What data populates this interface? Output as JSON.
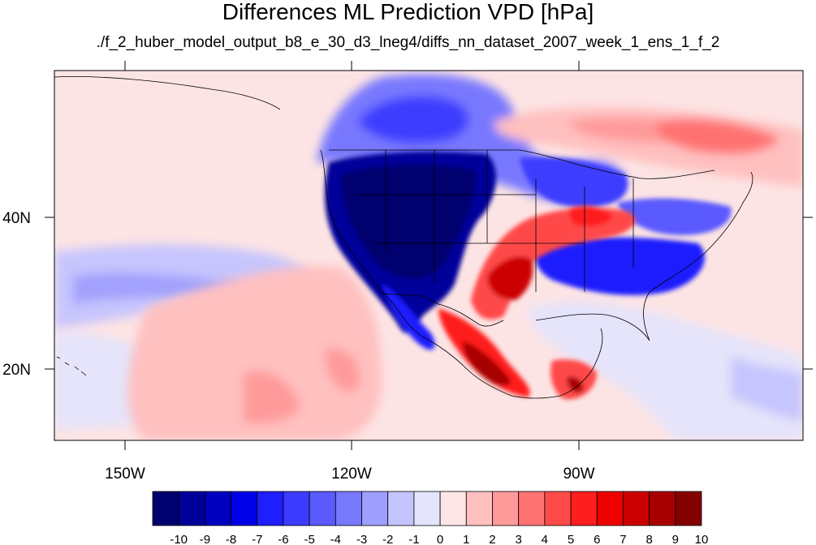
{
  "title": "Differences ML Prediction VPD [hPa]",
  "subtitle": "./f_2_huber_model_output_b8_e_30_d3_lneg4/diffs_nn_dataset_2007_week_1_ens_1_f_2",
  "axes": {
    "lon_ticks": [
      "150W",
      "120W",
      "90W"
    ],
    "lat_ticks": [
      "40N",
      "20N"
    ]
  },
  "colorbar": {
    "labels": [
      "-10",
      "-9",
      "-8",
      "-7",
      "-6",
      "-5",
      "-4",
      "-3",
      "-2",
      "-1",
      "0",
      "1",
      "2",
      "3",
      "4",
      "5",
      "6",
      "7",
      "8",
      "9",
      "10"
    ],
    "colors": [
      "#00006e",
      "#00009a",
      "#0000bf",
      "#0000e6",
      "#1e1eff",
      "#3c3cff",
      "#5a5aff",
      "#7878ff",
      "#9e9eff",
      "#c4c4ff",
      "#e4e4fc",
      "#ffe6e6",
      "#ffc0c0",
      "#ff9a9a",
      "#ff7272",
      "#ff4a4a",
      "#ff1e1e",
      "#ef0000",
      "#cc0000",
      "#a80000",
      "#850000"
    ]
  },
  "colors": {
    "ocean_background": "#fde4e4",
    "frame": "#000000"
  }
}
